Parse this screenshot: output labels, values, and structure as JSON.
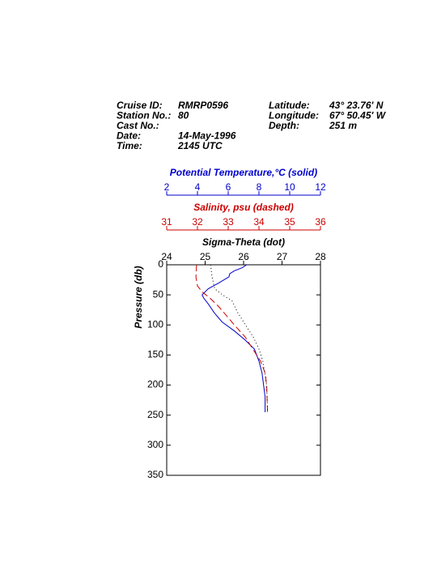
{
  "chart_data": {
    "type": "profile",
    "header": {
      "left": [
        {
          "label": "Cruise ID:",
          "value": "RMRP0596"
        },
        {
          "label": "Station No.:",
          "value": "80"
        },
        {
          "label": "Cast No.:"
        },
        {
          "label": "Date:",
          "value": "14-May-1996"
        },
        {
          "label": "Time:",
          "value": "2145 UTC"
        }
      ],
      "right": [
        {
          "label": "Latitude:",
          "value": "43° 23.76' N"
        },
        {
          "label": "Longitude:",
          "value": "67° 50.45' W"
        },
        {
          "label": "Depth:",
          "value": "251 m"
        }
      ]
    },
    "x_axes": [
      {
        "label": "Potential Temperature,°C (solid)",
        "color": "#0000cc",
        "xlim": [
          2,
          12
        ],
        "xticks": [
          2,
          4,
          6,
          8,
          10,
          12
        ]
      },
      {
        "label": "Salinity, psu  (dashed)",
        "color": "#cc0000",
        "xlim": [
          31,
          36
        ],
        "xticks": [
          31,
          32,
          33,
          34,
          35,
          36
        ]
      },
      {
        "label": "Sigma-Theta (dot)",
        "color": "#000000",
        "xlim": [
          24,
          28
        ],
        "xticks": [
          24,
          25,
          26,
          27,
          28
        ]
      }
    ],
    "y_label": "Pressure (db)",
    "ylim": [
      0,
      350
    ],
    "yticks": [
      0,
      50,
      100,
      150,
      200,
      250,
      300,
      350
    ],
    "y_inverted": true,
    "series": [
      {
        "axis": 0,
        "color": "#0000cc",
        "dash": "solid",
        "pressure": [
          0,
          5,
          10,
          15,
          20,
          30,
          40,
          50,
          55,
          65,
          80,
          95,
          110,
          125,
          140,
          160,
          180,
          200,
          220,
          245
        ],
        "values": [
          7.2,
          6.9,
          6.4,
          6.1,
          6.05,
          5.4,
          4.7,
          4.3,
          4.4,
          4.7,
          5.1,
          5.6,
          6.4,
          7.1,
          7.7,
          8.0,
          8.2,
          8.3,
          8.4,
          8.4
        ]
      },
      {
        "axis": 1,
        "color": "#cc0000",
        "dash": "dashed",
        "pressure": [
          0,
          20,
          35,
          45,
          55,
          70,
          85,
          100,
          120,
          140,
          160,
          180,
          200,
          245
        ],
        "values": [
          31.97,
          31.95,
          32.0,
          32.15,
          32.4,
          32.7,
          32.95,
          33.2,
          33.55,
          33.8,
          34.05,
          34.2,
          34.25,
          34.28
        ]
      },
      {
        "axis": 2,
        "color": "#000000",
        "dash": "dotted",
        "pressure": [
          0,
          20,
          40,
          50,
          60,
          80,
          100,
          120,
          140,
          160,
          200,
          245
        ],
        "values": [
          25.14,
          25.18,
          25.25,
          25.45,
          25.7,
          25.85,
          26.05,
          26.25,
          26.4,
          26.5,
          26.6,
          26.62
        ]
      }
    ]
  }
}
